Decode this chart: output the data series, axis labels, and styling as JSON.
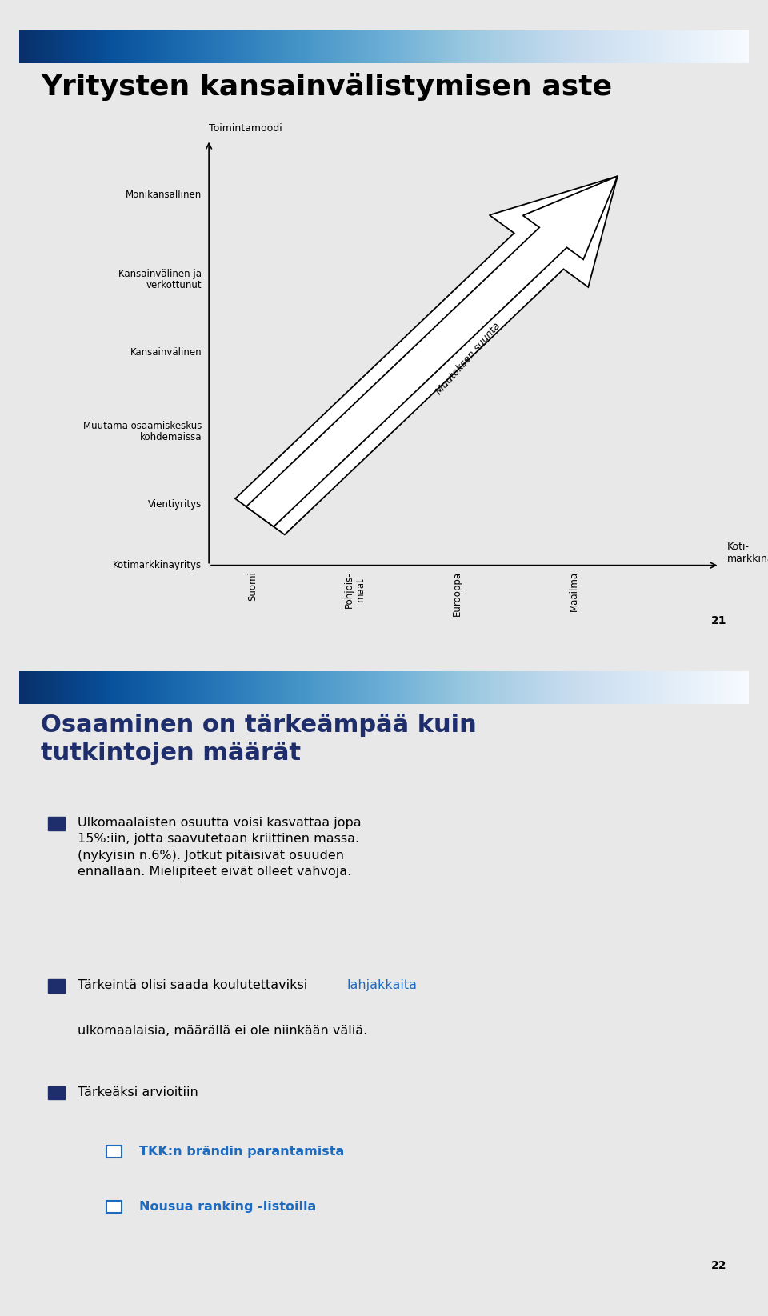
{
  "slide1_title": "Yritysten kansainvälistymisen aste",
  "slide1_page": "21",
  "slide2_page": "22",
  "y_axis_label": "Toimintamoodi",
  "y_labels": [
    "Kotimarkkinayritys",
    "Vientiyritys",
    "Muutama osaamiskeskus\nkohdemaissa",
    "Kansainvälinen",
    "Kansainvälinen ja\nverkottunut",
    "Monikansallinen"
  ],
  "x_labels": [
    "Suomi",
    "Pohjois-\nmaat",
    "Eurooppa",
    "Maailma"
  ],
  "x_axis_end_label": "Koti-\nmarkkina",
  "arrow_label": "Muutoksen suunta",
  "slide2_title": "Osaaminen on tärkeämpää kuin\ntutkintojen määrät",
  "bullet1": "Ulkomaalaisten osuutta voisi kasvattaa jopa\n15%:iin, jotta saavutetaan kriittinen massa.\n(nykyisin n.6%). Jotkut pitäisivät osuuden\nennallaan. Mielipiteet eivät olleet vahvoja.",
  "bullet2_line1_prefix": "Tärkeintä olisi saada koulutettaviksi ",
  "bullet2_line1_highlight": "lahjakkaita",
  "bullet2_line2": "ulkomaalaisia, määrällä ei ole niinkään väliä.",
  "bullet3_main": "Tärkeäksi arvioitiin",
  "bullet3_sub1": "TKK:n brändin parantamista",
  "bullet3_sub2": "Nousua ranking -listoilla",
  "outer_bg": "#e8e8e8",
  "slide_bg": "#ffffff",
  "header_dark": "#1e2d6b",
  "title1_color": "#000000",
  "title2_color": "#1e2d6b",
  "bullet_sq_color": "#1e2d6b",
  "highlight_color": "#1e6abf",
  "sub_color": "#1e6abf",
  "text_color": "#000000",
  "page_color": "#000000"
}
